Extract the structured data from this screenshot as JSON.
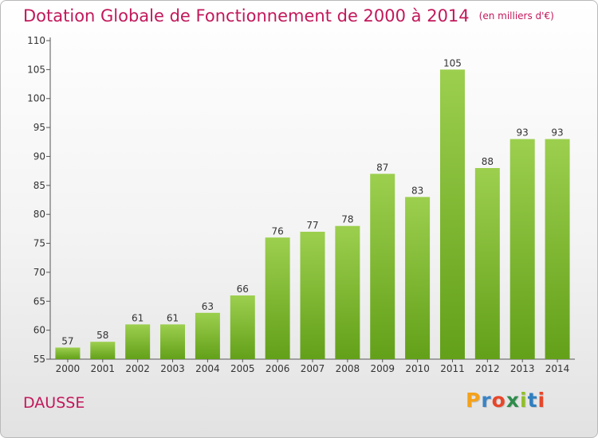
{
  "header": {
    "title": "Dotation Globale de Fonctionnement de 2000 à 2014",
    "unit": "(en milliers d'€)"
  },
  "footer": {
    "commune": "DAUSSE",
    "logo_text": "Proxiti"
  },
  "colors": {
    "title": "#c2185b",
    "bar_top": "#9ccf4e",
    "bar_bottom": "#63a019",
    "logo_letters": [
      "#f4a21c",
      "#3a83c6",
      "#e8462a",
      "#2f8c4c",
      "#8fbf25",
      "#2f7fc0",
      "#e8462a"
    ]
  },
  "chart_data": {
    "type": "bar",
    "title": "Dotation Globale de Fonctionnement de 2000 à 2014",
    "xlabel": "",
    "ylabel": "",
    "categories": [
      "2000",
      "2001",
      "2002",
      "2003",
      "2004",
      "2005",
      "2006",
      "2007",
      "2008",
      "2009",
      "2010",
      "2011",
      "2012",
      "2013",
      "2014"
    ],
    "values": [
      57,
      58,
      61,
      61,
      63,
      66,
      76,
      77,
      78,
      87,
      83,
      105,
      88,
      93,
      93
    ],
    "ylim": [
      55,
      110
    ],
    "yticks": [
      55,
      60,
      65,
      70,
      75,
      80,
      85,
      90,
      95,
      100,
      105,
      110
    ],
    "grid": false,
    "data_labels": true
  }
}
